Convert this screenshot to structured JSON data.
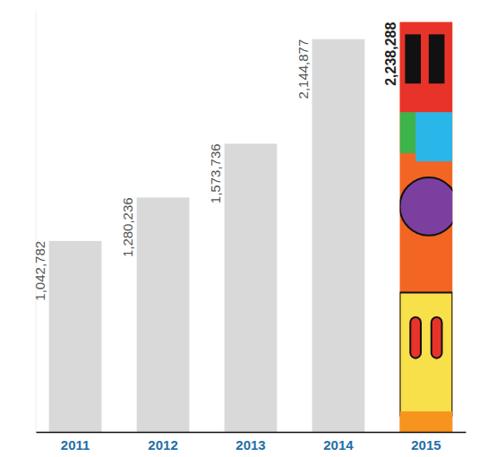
{
  "chart_data": {
    "type": "bar",
    "categories": [
      "2011",
      "2012",
      "2013",
      "2014",
      "2015"
    ],
    "values": [
      1042782,
      1280236,
      1573736,
      2144877,
      2238288
    ],
    "value_labels": [
      "1,042,782",
      "1,280,236",
      "1,573,736",
      "2,144,877",
      "2,238,288"
    ],
    "colors": [
      "#d9d9d9",
      "#d9d9d9",
      "#d9d9d9",
      "#d9d9d9",
      "#f26522"
    ],
    "ylim": [
      0,
      2300000
    ],
    "data_labels": true,
    "tick_labels": "x",
    "grid": false
  }
}
